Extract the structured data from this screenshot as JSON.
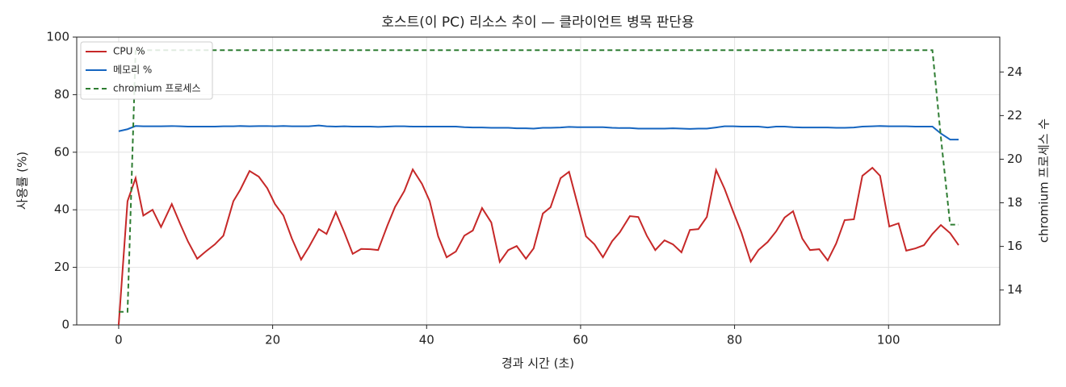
{
  "chart_data": {
    "type": "line",
    "title": "호스트(이 PC) 리소스 추이 — 클라이언트 병목 판단용",
    "xlabel": "경과 시간 (초)",
    "ylabel": "사용률 (%)",
    "y2label": "chromium 프로세스 수",
    "x": [
      0,
      1.15,
      2.2,
      3.2,
      4.4,
      5.5,
      6.9,
      8,
      9,
      10.2,
      11.3,
      12.5,
      13.6,
      14.9,
      15.8,
      17,
      18.2,
      19.3,
      20.3,
      21.4,
      22.5,
      23.7,
      24.7,
      26,
      27,
      28.2,
      29.3,
      30.4,
      31.5,
      32.7,
      33.7,
      34.9,
      35.9,
      37.1,
      38.2,
      39.4,
      40.4,
      41.5,
      42.6,
      43.8,
      44.9,
      46,
      47.2,
      48.4,
      49.5,
      50.6,
      51.7,
      52.9,
      53.9,
      55.1,
      56.1,
      57.4,
      58.5,
      59.6,
      60.7,
      61.8,
      62.9,
      64.1,
      65.1,
      66.4,
      67.5,
      68.6,
      69.7,
      70.9,
      72,
      73.1,
      74.2,
      75.3,
      76.4,
      77.6,
      78.7,
      79.8,
      80.9,
      82.1,
      83.1,
      84.3,
      85.4,
      86.5,
      87.6,
      88.8,
      89.8,
      91,
      92.1,
      93.2,
      94.3,
      95.5,
      96.6,
      97.9,
      98.9,
      100.1,
      101.3,
      102.3,
      103.5,
      104.6,
      105.7,
      106.8,
      108,
      109.1
    ],
    "series": [
      {
        "name": "CPU %",
        "color": "#c62828",
        "linestyle": "solid",
        "values": [
          0,
          43,
          51,
          38,
          40,
          34,
          42,
          35,
          29,
          23,
          25.5,
          28,
          31,
          43,
          47,
          53.5,
          51.5,
          47.5,
          42,
          38,
          30,
          22.7,
          27,
          33.3,
          31.6,
          39.2,
          32.2,
          24.7,
          26.4,
          26.3,
          26,
          34.5,
          41,
          46.5,
          54,
          49,
          43,
          30.8,
          23.5,
          25.5,
          31,
          32.8,
          40.6,
          35.6,
          21.9,
          26,
          27.4,
          23,
          26.6,
          38.7,
          40.9,
          51,
          53.2,
          42,
          30.8,
          28,
          23.5,
          29.1,
          32.2,
          37.8,
          37.5,
          31,
          26,
          29.4,
          28,
          25.2,
          33,
          33.3,
          37.5,
          53.8,
          47.3,
          39.5,
          32,
          22,
          26,
          28.8,
          32.5,
          37.3,
          39.5,
          30,
          26,
          26.3,
          22.4,
          28.3,
          36.4,
          36.7,
          51.8,
          54.6,
          51.8,
          34.2,
          35.3,
          25.8,
          26.6,
          27.7,
          31.6,
          34.7,
          31.9,
          27.7
        ]
      },
      {
        "name": "메모리 %",
        "color": "#1565c0",
        "linestyle": "solid",
        "values": [
          67.3,
          68,
          69.1,
          69,
          69,
          69,
          69.1,
          69,
          68.9,
          68.9,
          68.9,
          68.9,
          69,
          69,
          69.1,
          69,
          69.1,
          69.1,
          69,
          69.1,
          69,
          69,
          69,
          69.3,
          69,
          68.9,
          69,
          68.9,
          68.9,
          68.9,
          68.8,
          68.9,
          69,
          69,
          68.9,
          68.9,
          68.9,
          68.9,
          68.9,
          68.9,
          68.7,
          68.6,
          68.6,
          68.5,
          68.5,
          68.5,
          68.3,
          68.3,
          68.2,
          68.5,
          68.5,
          68.6,
          68.8,
          68.7,
          68.7,
          68.7,
          68.7,
          68.5,
          68.4,
          68.4,
          68.2,
          68.2,
          68.2,
          68.2,
          68.3,
          68.2,
          68.1,
          68.2,
          68.2,
          68.6,
          69,
          69,
          68.9,
          68.9,
          68.9,
          68.6,
          68.9,
          68.9,
          68.7,
          68.6,
          68.6,
          68.6,
          68.6,
          68.5,
          68.5,
          68.6,
          68.9,
          69,
          69.1,
          69,
          69,
          69,
          68.9,
          68.9,
          68.9,
          66.5,
          64.4,
          64.4
        ]
      },
      {
        "name": "chromium 프로세스",
        "color": "#2e7d32",
        "linestyle": "dashed",
        "axis": "y2",
        "values": [
          13,
          13,
          25,
          25,
          25,
          25,
          25,
          25,
          25,
          25,
          25,
          25,
          25,
          25,
          25,
          25,
          25,
          25,
          25,
          25,
          25,
          25,
          25,
          25,
          25,
          25,
          25,
          25,
          25,
          25,
          25,
          25,
          25,
          25,
          25,
          25,
          25,
          25,
          25,
          25,
          25,
          25,
          25,
          25,
          25,
          25,
          25,
          25,
          25,
          25,
          25,
          25,
          25,
          25,
          25,
          25,
          25,
          25,
          25,
          25,
          25,
          25,
          25,
          25,
          25,
          25,
          25,
          25,
          25,
          25,
          25,
          25,
          25,
          25,
          25,
          25,
          25,
          25,
          25,
          25,
          25,
          25,
          25,
          25,
          25,
          25,
          25,
          25,
          25,
          25,
          25,
          25,
          25,
          25,
          25,
          21,
          17,
          17
        ]
      }
    ],
    "xlim": [
      -5.45,
      114.45
    ],
    "xticks": [
      0,
      20,
      40,
      60,
      80,
      100
    ],
    "ylim": [
      0,
      100
    ],
    "yticks": [
      0,
      20,
      40,
      60,
      80,
      100
    ],
    "y2lim": [
      12.4,
      25.6
    ],
    "y2ticks": [
      14,
      16,
      18,
      20,
      22,
      24
    ],
    "grid": true,
    "legend": "upper left"
  }
}
